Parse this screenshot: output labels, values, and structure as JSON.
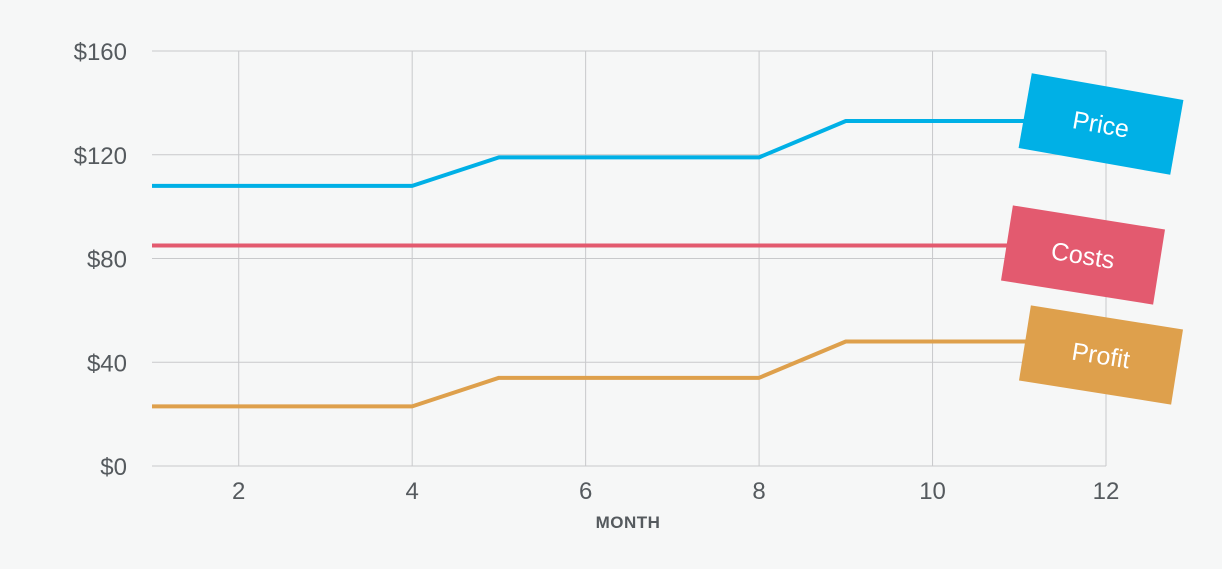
{
  "chart_data": {
    "type": "line",
    "xlabel": "MONTH",
    "x": [
      1,
      2,
      3,
      4,
      5,
      6,
      7,
      8,
      9,
      10,
      11,
      12
    ],
    "xlim": [
      1,
      12
    ],
    "xticks": [
      2,
      4,
      6,
      8,
      10,
      12
    ],
    "ylim": [
      0,
      160
    ],
    "yticks": [
      0,
      40,
      80,
      120,
      160
    ],
    "ytick_labels": [
      "$0",
      "$40",
      "$80",
      "$120",
      "$160"
    ],
    "grid": true,
    "series": [
      {
        "name": "Price",
        "color": "#00b0e6",
        "values": [
          108,
          108,
          108,
          108,
          119,
          119,
          119,
          119,
          133,
          133,
          133,
          133
        ]
      },
      {
        "name": "Costs",
        "color": "#e35a6f",
        "values": [
          85,
          85,
          85,
          85,
          85,
          85,
          85,
          85,
          85,
          85,
          85,
          85
        ]
      },
      {
        "name": "Profit",
        "color": "#dea04c",
        "values": [
          23,
          23,
          23,
          23,
          34,
          34,
          34,
          34,
          48,
          48,
          48,
          48
        ]
      }
    ]
  }
}
